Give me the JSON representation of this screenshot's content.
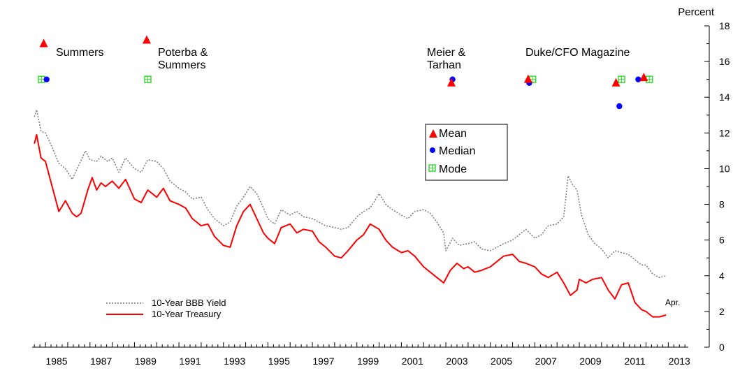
{
  "chart_data": {
    "type": "line",
    "y_unit_label": "Percent",
    "xlim": [
      1984.4,
      2013.9
    ],
    "ylim": [
      0,
      18
    ],
    "grid": false,
    "x_tick_labels": [
      "1985",
      "1987",
      "1989",
      "1991",
      "1993",
      "1995",
      "1997",
      "1999",
      "2001",
      "2003",
      "2005",
      "2007",
      "2009",
      "2011",
      "2013"
    ],
    "y_tick_labels": [
      "0",
      "2",
      "4",
      "6",
      "8",
      "10",
      "12",
      "14",
      "16",
      "18"
    ],
    "legend_lines": {
      "bbb": "10-Year BBB Yield",
      "treasury": "10-Year Treasury",
      "placement": "lower-left"
    },
    "legend_markers": {
      "mean": "Mean",
      "median": "Median",
      "mode": "Mode",
      "placement": "center-right"
    },
    "end_annotation": "Apr.",
    "colors": {
      "bbb": "#7a7a7a",
      "treasury": "#ff0000",
      "mean": "#ff0000",
      "median": "#0000ff",
      "mode": "#33dd33"
    },
    "series": [
      {
        "name": "10-Year BBB Yield",
        "style": "dotted",
        "x": [
          1984.5,
          1984.6,
          1984.8,
          1985.0,
          1985.3,
          1985.6,
          1985.9,
          1986.2,
          1986.5,
          1986.8,
          1987.0,
          1987.3,
          1987.5,
          1987.8,
          1988.0,
          1988.3,
          1988.6,
          1989.0,
          1989.3,
          1989.6,
          1990.0,
          1990.3,
          1990.6,
          1991.0,
          1991.3,
          1991.6,
          1992.0,
          1992.3,
          1992.6,
          1993.0,
          1993.3,
          1993.6,
          1993.9,
          1994.2,
          1994.5,
          1994.8,
          1995.0,
          1995.3,
          1995.6,
          1996.0,
          1996.3,
          1996.6,
          1997.0,
          1997.3,
          1997.6,
          1998.0,
          1998.3,
          1998.6,
          1999.0,
          1999.3,
          1999.6,
          2000.0,
          2000.3,
          2000.6,
          2001.0,
          2001.3,
          2001.6,
          2002.0,
          2002.3,
          2002.6,
          2002.9,
          2003.0,
          2003.3,
          2003.6,
          2004.0,
          2004.3,
          2004.6,
          2005.0,
          2005.3,
          2005.6,
          2006.0,
          2006.3,
          2006.6,
          2007.0,
          2007.3,
          2007.6,
          2008.0,
          2008.3,
          2008.5,
          2008.7,
          2008.9,
          2009.1,
          2009.4,
          2009.7,
          2010.0,
          2010.3,
          2010.6,
          2010.9,
          2011.2,
          2011.5,
          2011.8,
          2012.0,
          2012.3,
          2012.6,
          2012.9
        ],
        "values": [
          12.9,
          13.3,
          12.1,
          12.0,
          11.2,
          10.3,
          10.0,
          9.4,
          10.2,
          11.0,
          10.5,
          10.4,
          10.7,
          10.4,
          10.6,
          9.8,
          10.6,
          10.0,
          9.8,
          10.5,
          10.4,
          10.0,
          9.3,
          8.9,
          8.7,
          8.3,
          8.4,
          7.7,
          7.2,
          6.8,
          7.0,
          7.9,
          8.4,
          9.0,
          8.6,
          7.8,
          7.2,
          6.9,
          7.7,
          7.4,
          7.6,
          7.3,
          7.2,
          7.0,
          6.8,
          6.7,
          6.6,
          6.7,
          7.3,
          7.6,
          7.8,
          8.6,
          8.0,
          7.7,
          7.4,
          7.2,
          7.6,
          7.7,
          7.5,
          7.0,
          6.4,
          5.4,
          6.1,
          5.7,
          5.8,
          5.9,
          5.5,
          5.4,
          5.6,
          5.8,
          6.0,
          6.3,
          6.6,
          6.1,
          6.3,
          6.8,
          6.9,
          7.3,
          9.6,
          9.1,
          8.8,
          7.4,
          6.3,
          5.8,
          5.5,
          5.0,
          5.4,
          5.3,
          5.2,
          4.9,
          4.6,
          4.6,
          4.1,
          3.9,
          4.0
        ]
      },
      {
        "name": "10-Year Treasury",
        "style": "solid",
        "x": [
          1984.5,
          1984.6,
          1984.8,
          1985.0,
          1985.3,
          1985.6,
          1985.9,
          1986.2,
          1986.4,
          1986.6,
          1986.9,
          1987.1,
          1987.3,
          1987.5,
          1987.7,
          1988.0,
          1988.3,
          1988.6,
          1989.0,
          1989.3,
          1989.6,
          1990.0,
          1990.3,
          1990.6,
          1991.0,
          1991.3,
          1991.6,
          1992.0,
          1992.3,
          1992.6,
          1993.0,
          1993.3,
          1993.6,
          1993.9,
          1994.2,
          1994.5,
          1994.8,
          1995.0,
          1995.3,
          1995.6,
          1996.0,
          1996.3,
          1996.6,
          1997.0,
          1997.3,
          1997.6,
          1998.0,
          1998.3,
          1998.6,
          1999.0,
          1999.3,
          1999.6,
          2000.0,
          2000.3,
          2000.6,
          2001.0,
          2001.3,
          2001.6,
          2002.0,
          2002.3,
          2002.6,
          2002.9,
          2003.2,
          2003.5,
          2003.8,
          2004.0,
          2004.3,
          2004.6,
          2005.0,
          2005.3,
          2005.6,
          2006.0,
          2006.3,
          2006.6,
          2007.0,
          2007.3,
          2007.6,
          2008.0,
          2008.3,
          2008.6,
          2008.9,
          2009.0,
          2009.3,
          2009.6,
          2010.0,
          2010.3,
          2010.6,
          2010.9,
          2011.2,
          2011.5,
          2011.8,
          2012.0,
          2012.3,
          2012.6,
          2012.9
        ],
        "values": [
          11.4,
          11.9,
          10.6,
          10.4,
          9.0,
          7.6,
          8.2,
          7.5,
          7.3,
          7.5,
          8.8,
          9.5,
          8.8,
          9.2,
          9.0,
          9.3,
          8.9,
          9.4,
          8.3,
          8.1,
          8.8,
          8.4,
          8.9,
          8.2,
          8.0,
          7.8,
          7.2,
          6.8,
          6.9,
          6.2,
          5.7,
          5.6,
          6.8,
          7.6,
          8.0,
          7.2,
          6.4,
          6.1,
          5.8,
          6.7,
          6.9,
          6.4,
          6.6,
          6.5,
          5.9,
          5.6,
          5.1,
          5.0,
          5.4,
          6.0,
          6.3,
          6.9,
          6.6,
          6.0,
          5.6,
          5.3,
          5.4,
          5.1,
          4.5,
          4.2,
          3.9,
          3.6,
          4.3,
          4.7,
          4.4,
          4.5,
          4.2,
          4.3,
          4.5,
          4.8,
          5.1,
          5.2,
          4.8,
          4.7,
          4.5,
          4.1,
          3.9,
          4.2,
          3.6,
          2.9,
          3.2,
          3.8,
          3.6,
          3.8,
          3.9,
          3.2,
          2.7,
          3.5,
          3.6,
          2.5,
          2.1,
          2.0,
          1.7,
          1.7,
          1.8
        ]
      }
    ],
    "survey_points": [
      {
        "label": "Summers",
        "mean": {
          "x": 1984.92,
          "y": 17.0
        },
        "median": {
          "x": 1985.05,
          "y": 15.0
        },
        "mode": {
          "x": 1984.82,
          "y": 15.0
        }
      },
      {
        "label": "Poterba &\nSummers",
        "mean": {
          "x": 1989.55,
          "y": 17.2
        },
        "median": null,
        "mode": {
          "x": 1989.6,
          "y": 15.0
        }
      },
      {
        "label": "Meier &\nTarhan",
        "mean": {
          "x": 2003.25,
          "y": 14.8
        },
        "median": {
          "x": 2003.3,
          "y": 15.0
        },
        "mode": null
      },
      {
        "label": "Duke/CFO Magazine",
        "mean": {
          "x": 2006.7,
          "y": 15.0
        },
        "median": {
          "x": 2006.75,
          "y": 14.8
        },
        "mode": {
          "x": 2006.9,
          "y": 15.0
        }
      },
      {
        "label": "",
        "mean": {
          "x": 2010.65,
          "y": 14.8
        },
        "median": {
          "x": 2010.8,
          "y": 13.5
        },
        "mode": {
          "x": 2010.9,
          "y": 15.0
        }
      },
      {
        "label": "",
        "mean": {
          "x": 2011.9,
          "y": 15.1
        },
        "median": {
          "x": 2011.65,
          "y": 15.0
        },
        "mode": {
          "x": 2012.15,
          "y": 15.0
        }
      }
    ]
  }
}
